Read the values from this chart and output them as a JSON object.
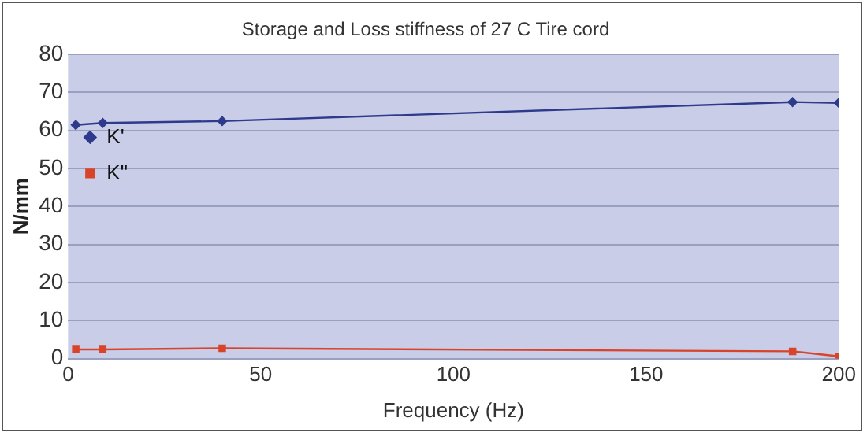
{
  "chart_data": {
    "type": "line",
    "title": "Storage and Loss stiffness of 27 C Tire cord",
    "xlabel": "Frequency (Hz)",
    "ylabel": "N/mm",
    "x": [
      2,
      9,
      40,
      188,
      200
    ],
    "series": [
      {
        "name": "K'",
        "color": "#2e3a8c",
        "marker": "diamond",
        "values": [
          61.4,
          61.9,
          62.4,
          67.4,
          67.2
        ]
      },
      {
        "name": "K\"",
        "color": "#d8442a",
        "marker": "square",
        "values": [
          2.4,
          2.4,
          2.7,
          1.9,
          0.6
        ]
      }
    ],
    "xlim": [
      0,
      200
    ],
    "xticks": [
      0,
      50,
      100,
      150,
      200
    ],
    "ylim": [
      0,
      80
    ],
    "yticks": [
      0,
      10,
      20,
      30,
      40,
      50,
      60,
      70,
      80
    ],
    "grid": "y",
    "legend": "top"
  }
}
